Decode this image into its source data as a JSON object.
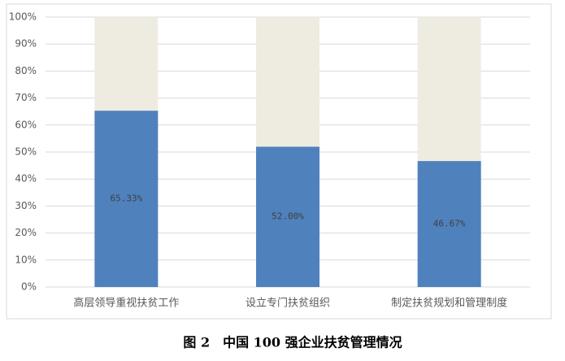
{
  "chart_data": {
    "type": "stacked_bar",
    "caption": "图 2　中国 100 强企业扶贫管理情况",
    "categories": [
      "高层领导重视扶贫工作",
      "设立专门扶贫组织",
      "制定扶贫规划和管理制度"
    ],
    "series": [
      {
        "color": "#4f81bd",
        "values": [
          65.33,
          52.0,
          46.67
        ],
        "value_labels": [
          "65.33%",
          "52.00%",
          "46.67%"
        ]
      },
      {
        "color": "#eeece1",
        "values": [
          34.67,
          48.0,
          53.33
        ]
      }
    ],
    "ylim": [
      0,
      100
    ],
    "yticks": [
      {
        "value": 0,
        "label": "0%"
      },
      {
        "value": 10,
        "label": "10%"
      },
      {
        "value": 20,
        "label": "20%"
      },
      {
        "value": 30,
        "label": "30%"
      },
      {
        "value": 40,
        "label": "40%"
      },
      {
        "value": 50,
        "label": "50%"
      },
      {
        "value": 60,
        "label": "60%"
      },
      {
        "value": 70,
        "label": "70%"
      },
      {
        "value": 80,
        "label": "80%"
      },
      {
        "value": 90,
        "label": "90%"
      },
      {
        "value": 100,
        "label": "100%"
      }
    ],
    "grid": true
  }
}
